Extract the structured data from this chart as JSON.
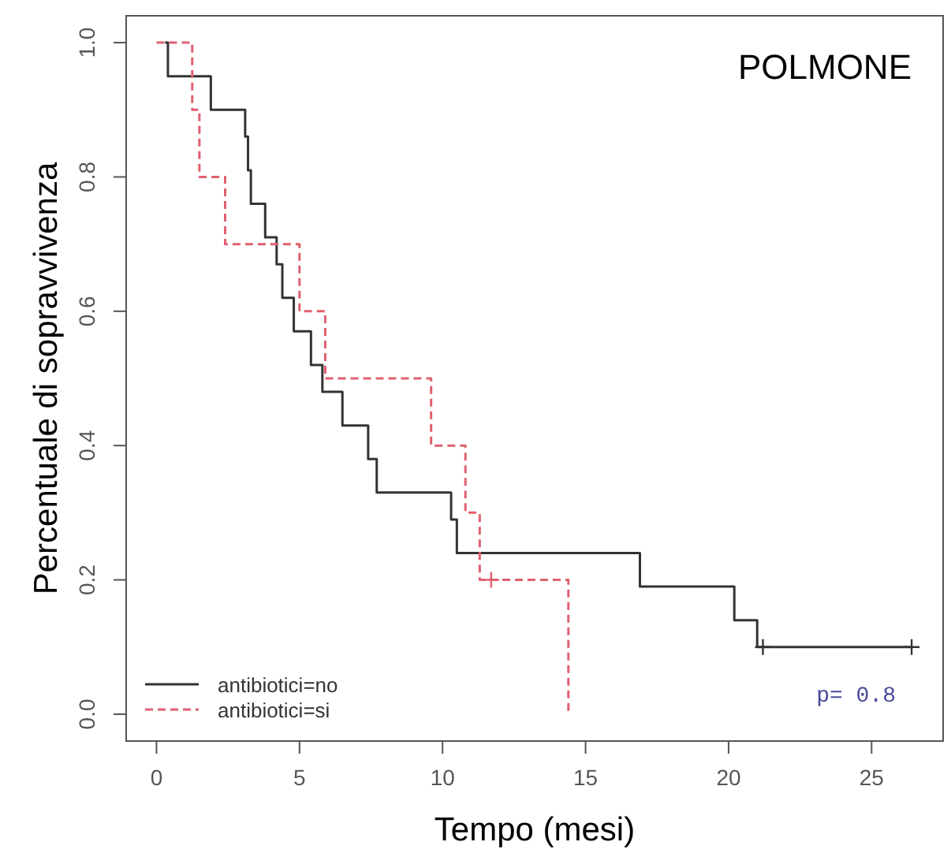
{
  "chart_data": {
    "type": "step",
    "title": "POLMONE",
    "xlabel": "Tempo (mesi)",
    "ylabel": "Percentuale di sopravvivenza",
    "annotations": [
      "p= 0.8"
    ],
    "xlim": [
      -1.06,
      27.5
    ],
    "xticks": [
      0,
      5,
      10,
      15,
      20,
      25
    ],
    "ylim": [
      -0.04,
      1.04
    ],
    "yticks": [
      {
        "value": 0,
        "label": "0.0"
      },
      0.2,
      0.4,
      0.6,
      0.8,
      {
        "value": 1,
        "label": "1.0"
      }
    ],
    "grid": false,
    "legend": "bottom left",
    "series": [
      {
        "name": "antibiotici=no",
        "color": "#333333",
        "line_style": "solid",
        "x": [
          0.3,
          0.4,
          1.9,
          3.1,
          3.2,
          3.3,
          3.8,
          4.2,
          4.4,
          4.8,
          5.4,
          5.8,
          6.5,
          7.4,
          7.7,
          10.3,
          10.5,
          16.9,
          20.2,
          21.0,
          26.4
        ],
        "values": [
          1,
          0.95,
          0.9,
          0.86,
          0.81,
          0.76,
          0.71,
          0.67,
          0.62,
          0.57,
          0.52,
          0.48,
          0.43,
          0.38,
          0.33,
          0.29,
          0.24,
          0.19,
          0.14,
          0.1,
          0.1
        ]
      },
      {
        "name": "antibiotici=si",
        "color": "#e06070",
        "line_style": "dashed",
        "x": [
          0,
          1.25,
          1.5,
          2.4,
          5.0,
          5.9,
          9.6,
          10.8,
          11.3,
          14.4
        ],
        "values": [
          1,
          0.9,
          0.8,
          0.7,
          0.6,
          0.5,
          0.4,
          0.3,
          0.2,
          0
        ]
      },
      {
        "type": "scatter",
        "marker": "cross",
        "color": "#333333",
        "x": [
          21.2,
          26.4
        ],
        "values": [
          0.1,
          0.1
        ]
      },
      {
        "type": "scatter",
        "marker": "cross",
        "color": "#e06070",
        "x": [
          11.7
        ],
        "values": [
          0.2
        ]
      }
    ]
  }
}
